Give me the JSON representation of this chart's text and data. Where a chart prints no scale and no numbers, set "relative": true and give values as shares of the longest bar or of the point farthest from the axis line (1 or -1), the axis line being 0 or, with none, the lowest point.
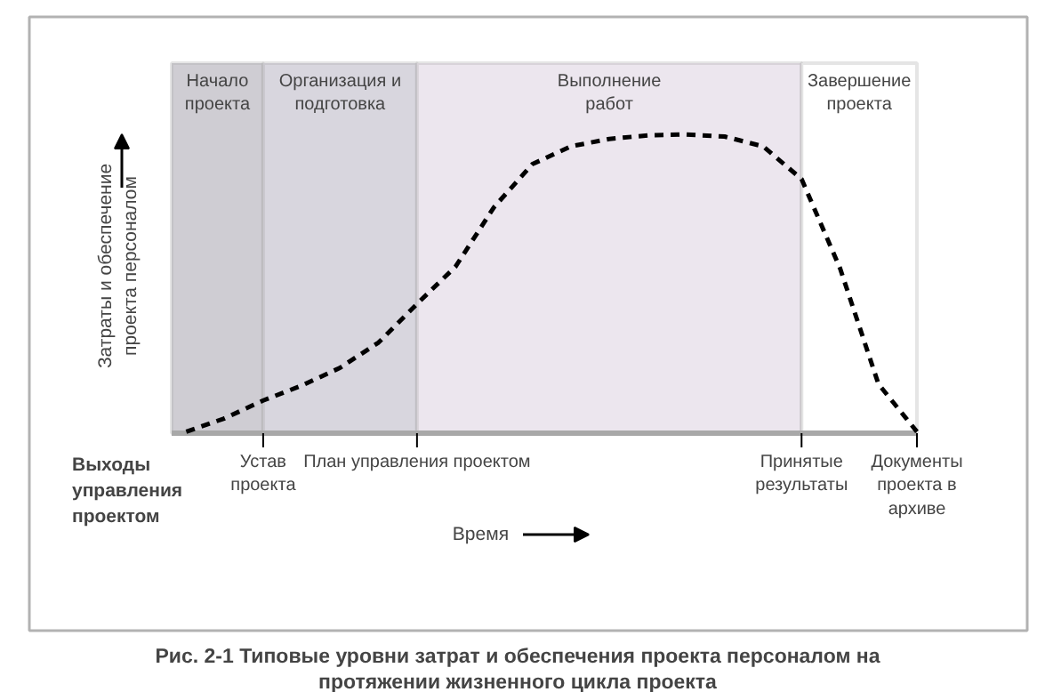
{
  "chart_data": {
    "type": "line",
    "relative": true,
    "title": "Рис. 2-1 Типовые уровни затрат и обеспечения проекта персоналом на протяжении жизненного цикла проекта",
    "xlabel": "Время",
    "ylabel": "Затраты и обеспечение проекта персоналом",
    "annotations": [
      "Выходы управления проектом",
      "Начало проекта"
    ],
    "categories": [
      null,
      null,
      "Устав проекта",
      null,
      null,
      null,
      "План управления проектом",
      null,
      null,
      null,
      null,
      null,
      null,
      null,
      null,
      null,
      "Принятые результаты",
      null,
      null,
      "Документы проекта в архиве"
    ],
    "series": [
      {
        "color": "#000000",
        "values": [
          0.0,
          0.045,
          0.105,
          0.155,
          0.215,
          0.3,
          0.43,
          0.555,
          0.755,
          0.9,
          0.96,
          0.985,
          0.997,
          1.0,
          0.993,
          0.96,
          0.85,
          0.55,
          0.16,
          0.0
        ]
      }
    ],
    "line_style": "dashed",
    "bands": [
      {
        "axis": "x",
        "from": "Устав проекта",
        "to": "План управления проектом",
        "label": "Организация и подготовка",
        "color": "#d8d6de"
      },
      {
        "axis": "x",
        "from": "План управления проектом",
        "to": "Принятые результаты",
        "label": "Выполнение работ",
        "color": "#ece6ee"
      },
      {
        "axis": "x",
        "from": "Принятые результаты",
        "to": "Документы проекта в архиве",
        "label": "Завершение проекта",
        "color": "#ffffff"
      }
    ]
  }
}
